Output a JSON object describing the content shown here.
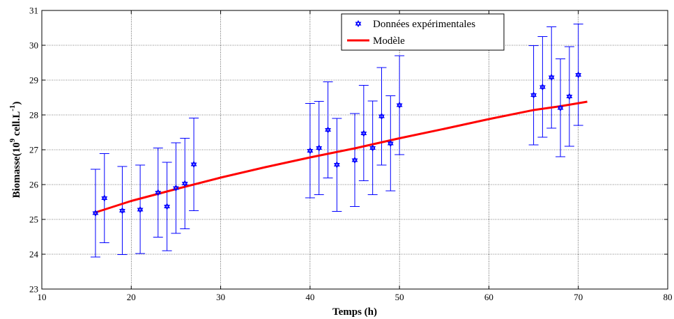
{
  "chart_data": {
    "type": "scatter",
    "xlabel": "Temps (h)",
    "ylabel": {
      "prefix": "Biomasse(10",
      "exp": "9",
      "middle": " cell.L",
      "exp2": "-1",
      "suffix": ")"
    },
    "xlim": [
      10,
      80
    ],
    "ylim": [
      23,
      31
    ],
    "xticks": [
      10,
      20,
      30,
      40,
      50,
      60,
      70,
      80
    ],
    "yticks": [
      23,
      24,
      25,
      26,
      27,
      28,
      29,
      30,
      31
    ],
    "grid": true,
    "legend_position": "top-center",
    "series": [
      {
        "name": "Données expérimentales",
        "kind": "points-with-errorbars",
        "color": "#0000ff",
        "marker": "hexagram",
        "x": [
          16,
          17,
          19,
          21,
          23,
          24,
          25,
          26,
          27,
          40,
          41,
          42,
          43,
          45,
          46,
          47,
          48,
          49,
          50,
          65,
          66,
          67,
          68,
          69,
          70
        ],
        "y": [
          25.18,
          25.61,
          25.25,
          25.28,
          25.77,
          25.37,
          25.9,
          26.03,
          26.58,
          26.97,
          27.05,
          27.57,
          26.57,
          26.7,
          27.47,
          27.05,
          27.96,
          27.18,
          28.28,
          28.57,
          28.8,
          29.08,
          28.2,
          28.53,
          29.15
        ],
        "ylow": [
          23.92,
          24.33,
          23.99,
          24.02,
          24.49,
          24.1,
          24.6,
          24.73,
          25.25,
          25.62,
          25.71,
          26.19,
          25.23,
          25.37,
          26.11,
          25.71,
          26.56,
          25.82,
          26.86,
          27.14,
          27.36,
          27.62,
          26.8,
          27.1,
          27.7
        ],
        "yhigh": [
          26.44,
          26.89,
          26.52,
          26.56,
          27.05,
          26.64,
          27.2,
          27.33,
          27.91,
          28.33,
          28.39,
          28.95,
          27.9,
          28.04,
          28.85,
          28.4,
          29.36,
          28.55,
          29.7,
          29.99,
          30.25,
          30.53,
          29.61,
          29.96,
          30.61
        ]
      },
      {
        "name": "Modèle",
        "kind": "line",
        "color": "#ff0000",
        "x": [
          16,
          20,
          25,
          30,
          35,
          40,
          45,
          50,
          55,
          60,
          65,
          68,
          71
        ],
        "y": [
          25.2,
          25.53,
          25.87,
          26.2,
          26.5,
          26.78,
          27.04,
          27.33,
          27.6,
          27.88,
          28.14,
          28.25,
          28.38
        ]
      }
    ]
  }
}
